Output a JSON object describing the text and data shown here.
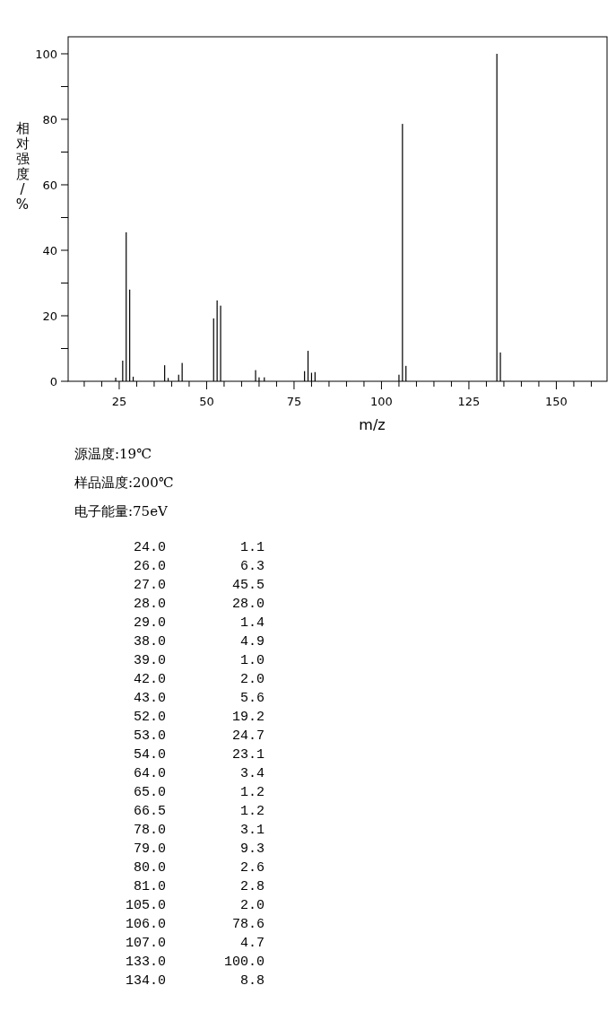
{
  "chart_data": {
    "type": "bar",
    "xlabel": "m/z",
    "ylabel": "相对强度/%",
    "x": [
      24.0,
      26.0,
      27.0,
      28.0,
      29.0,
      38.0,
      39.0,
      42.0,
      43.0,
      52.0,
      53.0,
      54.0,
      64.0,
      65.0,
      66.5,
      78.0,
      79.0,
      80.0,
      81.0,
      105.0,
      106.0,
      107.0,
      133.0,
      134.0
    ],
    "values": [
      1.1,
      6.3,
      45.5,
      28.0,
      1.4,
      4.9,
      1.0,
      2.0,
      5.6,
      19.2,
      24.7,
      23.1,
      3.4,
      1.2,
      1.2,
      3.1,
      9.3,
      2.6,
      2.8,
      2.0,
      78.6,
      4.7,
      100.0,
      8.8
    ],
    "color": "#000000",
    "xlim": [
      10.4,
      164.5
    ],
    "xticks": [
      {
        "value": 15,
        "label": null
      },
      {
        "value": 20,
        "label": null
      },
      25,
      {
        "value": 30,
        "label": null
      },
      {
        "value": 35,
        "label": null
      },
      {
        "value": 40,
        "label": null
      },
      {
        "value": 45,
        "label": null
      },
      50,
      {
        "value": 55,
        "label": null
      },
      {
        "value": 60,
        "label": null
      },
      {
        "value": 65,
        "label": null
      },
      {
        "value": 70,
        "label": null
      },
      75,
      {
        "value": 80,
        "label": null
      },
      {
        "value": 85,
        "label": null
      },
      {
        "value": 90,
        "label": null
      },
      {
        "value": 95,
        "label": null
      },
      100,
      {
        "value": 105,
        "label": null
      },
      {
        "value": 110,
        "label": null
      },
      {
        "value": 115,
        "label": null
      },
      {
        "value": 120,
        "label": null
      },
      125,
      {
        "value": 130,
        "label": null
      },
      {
        "value": 135,
        "label": null
      },
      {
        "value": 140,
        "label": null
      },
      {
        "value": 145,
        "label": null
      },
      150,
      {
        "value": 155,
        "label": null
      },
      {
        "value": 160,
        "label": null
      }
    ],
    "ylim": [
      0,
      105.2
    ],
    "yticks": [
      0,
      {
        "value": 10,
        "label": null
      },
      20,
      {
        "value": 30,
        "label": null
      },
      40,
      {
        "value": 50,
        "label": null
      },
      60,
      {
        "value": 70,
        "label": null
      },
      80,
      {
        "value": 90,
        "label": null
      },
      100
    ],
    "annotations": [
      "源温度:19℃",
      "样品温度:200℃",
      "电子能量:75eV",
      "24.0",
      "1.1",
      "26.0",
      "6.3",
      "27.0",
      "45.5",
      "28.0",
      "28.0",
      "29.0",
      "1.4",
      "38.0",
      "4.9",
      "39.0",
      "1.0",
      "42.0",
      "2.0",
      "43.0",
      "5.6",
      "52.0",
      "19.2",
      "53.0",
      "24.7",
      "54.0",
      "23.1",
      "64.0",
      "3.4",
      "65.0",
      "1.2",
      "66.5",
      "1.2",
      "78.0",
      "3.1",
      "79.0",
      "9.3",
      "80.0",
      "2.6",
      "81.0",
      "2.8",
      "105.0",
      "2.0",
      "106.0",
      "78.6",
      "107.0",
      "4.7",
      "133.0",
      "100.0",
      "134.0",
      "8.8"
    ]
  }
}
